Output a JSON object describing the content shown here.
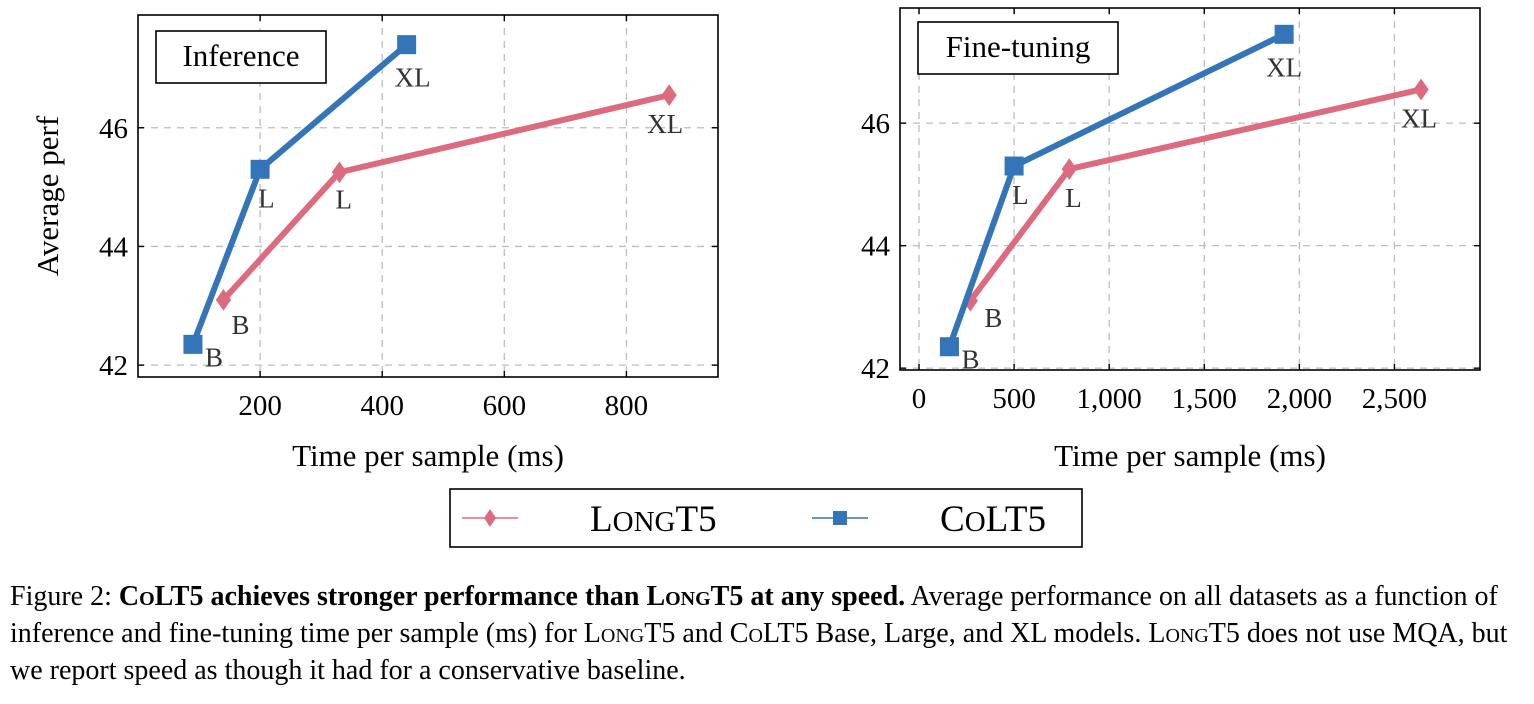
{
  "chart_data": [
    {
      "type": "line",
      "title": "Inference",
      "xlabel": "Time per sample (ms)",
      "ylabel": "Average perf",
      "xlim": [
        0,
        950
      ],
      "ylim": [
        41.8,
        47.9
      ],
      "xticks": [
        200,
        400,
        600,
        800
      ],
      "xtick_labels": [
        "200",
        "400",
        "600",
        "800"
      ],
      "yticks": [
        42,
        44,
        46
      ],
      "ytick_labels": [
        "42",
        "44",
        "46"
      ],
      "grid": true,
      "series": [
        {
          "name": "LongT5",
          "color": "#dd6b7f",
          "marker": "diamond",
          "points": [
            {
              "x": 140,
              "y": 43.1,
              "label": "B"
            },
            {
              "x": 330,
              "y": 45.25,
              "label": "L"
            },
            {
              "x": 870,
              "y": 46.55,
              "label": "XL"
            }
          ]
        },
        {
          "name": "CoLT5",
          "color": "#3375b8",
          "marker": "square",
          "points": [
            {
              "x": 90,
              "y": 42.35,
              "label": "B"
            },
            {
              "x": 200,
              "y": 45.3,
              "label": "L"
            },
            {
              "x": 440,
              "y": 47.4,
              "label": "XL"
            }
          ]
        }
      ]
    },
    {
      "type": "line",
      "title": "Fine-tuning",
      "xlabel": "Time per sample (ms)",
      "ylabel": "",
      "xlim": [
        -100,
        2950
      ],
      "ylim": [
        41.97,
        47.88
      ],
      "xticks": [
        0,
        500,
        1000,
        1500,
        2000,
        2500
      ],
      "xtick_labels": [
        "0",
        "500",
        "1,000",
        "1,500",
        "2,000",
        "2,500"
      ],
      "yticks": [
        42,
        44,
        46
      ],
      "ytick_labels": [
        "42",
        "44",
        "46"
      ],
      "grid": true,
      "series": [
        {
          "name": "LongT5",
          "color": "#dd6b7f",
          "marker": "diamond",
          "points": [
            {
              "x": 270,
              "y": 43.1,
              "label": "B"
            },
            {
              "x": 790,
              "y": 45.25,
              "label": "L"
            },
            {
              "x": 2640,
              "y": 46.55,
              "label": "XL"
            }
          ]
        },
        {
          "name": "CoLT5",
          "color": "#3375b8",
          "marker": "square",
          "points": [
            {
              "x": 160,
              "y": 42.35,
              "label": "B"
            },
            {
              "x": 500,
              "y": 45.3,
              "label": "L"
            },
            {
              "x": 1920,
              "y": 47.45,
              "label": "XL"
            }
          ]
        }
      ]
    }
  ],
  "legend": {
    "items": [
      {
        "label": "LongT5",
        "color": "#dd6b7f",
        "marker": "diamond"
      },
      {
        "label": "CoLT5",
        "color": "#3375b8",
        "marker": "square"
      }
    ]
  },
  "caption": {
    "figure_label": "Figure 2:",
    "headline": {
      "sc1": "CoLT5",
      "mid": " achieves stronger performance than ",
      "sc2": "LongT5",
      "end": " at any speed."
    },
    "body": {
      "t1": " Average performance on all datasets as a function of inference and fine-tuning time per sample (ms) for ",
      "sc1": "LongT5",
      "t2": " and ",
      "sc2": "CoLT5",
      "t3": " Base, Large, and XL models. ",
      "sc3": "LongT5",
      "t4": " does not use MQA, but we report speed as though it had for a conservative baseline."
    }
  }
}
